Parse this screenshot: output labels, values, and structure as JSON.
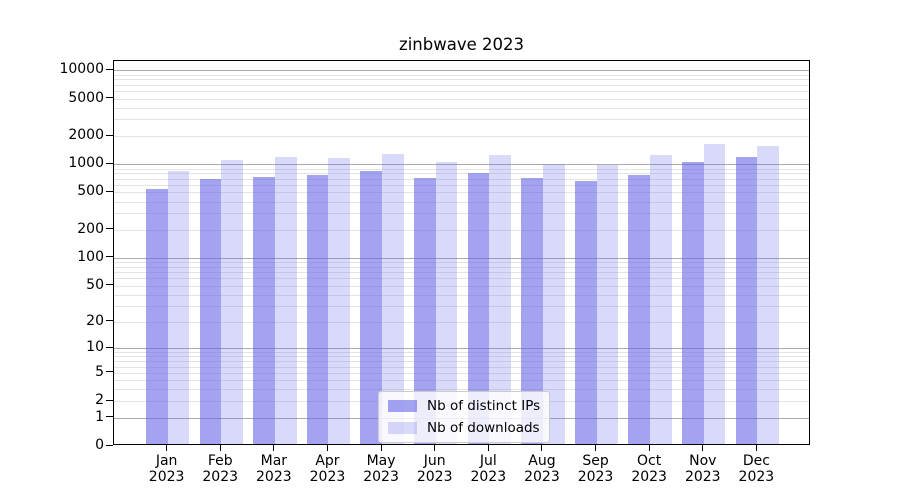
{
  "title": "zinbwave 2023",
  "legend": {
    "position": "lower center",
    "items": [
      {
        "label": "Nb of distinct IPs",
        "swatch_color": "rgba(102,102,230,0.6)"
      },
      {
        "label": "Nb of downloads",
        "swatch_color": "rgba(102,102,230,0.25)"
      }
    ]
  },
  "chart_data": {
    "type": "bar",
    "title": "zinbwave 2023",
    "categories": [
      "Jan 2023",
      "Feb 2023",
      "Mar 2023",
      "Apr 2023",
      "May 2023",
      "Jun 2023",
      "Jul 2023",
      "Aug 2023",
      "Sep 2023",
      "Oct 2023",
      "Nov 2023",
      "Dec 2023"
    ],
    "series": [
      {
        "name": "Nb of distinct IPs",
        "color": "rgba(102,102,230,0.6)",
        "values": [
          515,
          660,
          695,
          735,
          805,
          685,
          775,
          675,
          630,
          735,
          1015,
          1130
        ]
      },
      {
        "name": "Nb of downloads",
        "color": "rgba(102,102,230,0.25)",
        "values": [
          800,
          1055,
          1150,
          1100,
          1225,
          1000,
          1195,
          960,
          940,
          1195,
          1565,
          1505
        ]
      }
    ],
    "xlabel": "",
    "ylabel": "",
    "y_scale": "log10(v+1)",
    "y_ticks": [
      0,
      1,
      2,
      5,
      10,
      20,
      50,
      100,
      200,
      500,
      1000,
      2000,
      5000,
      10000
    ],
    "ylim": [
      0,
      12600
    ],
    "grid": {
      "major_at": "powers of 10",
      "minor_at": "2-9 per decade"
    },
    "legend_position": "lower center"
  },
  "colors": {
    "background": "#ffffff",
    "axis": "#000000",
    "grid_major": "#ababab",
    "grid_minor": "#e4e4e4",
    "bar_distinct_ips": "rgba(102,102,230,0.6)",
    "bar_downloads": "rgba(102,102,230,0.25)"
  }
}
